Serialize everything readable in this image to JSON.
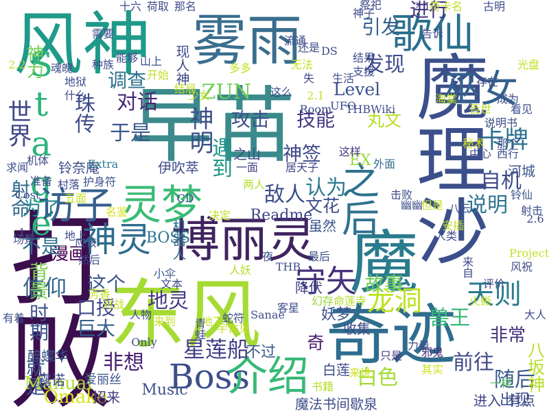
{
  "words": [
    {
      "text": "早苗",
      "color": "#3b8a8c"
    },
    {
      "text": "打败",
      "color": "#3b0f4e"
    },
    {
      "text": "东风",
      "color": "#a6db33"
    },
    {
      "text": "奇迹",
      "color": "#2f6d8e"
    },
    {
      "text": "魔理沙",
      "color": "#3b4f8a"
    },
    {
      "text": "魔",
      "color": "#2a7b8e"
    },
    {
      "text": "风神",
      "color": "#1f9a8a"
    },
    {
      "text": "雾雨",
      "color": "#3a6e8e"
    },
    {
      "text": "博丽灵",
      "color": "#40245f"
    },
    {
      "text": "歌仙",
      "color": "#2b6f8e"
    },
    {
      "text": "巫女",
      "color": "#34608d"
    },
    {
      "text": "Boss",
      "color": "#3c4f8a"
    },
    {
      "text": "介绍",
      "color": "#38b977"
    },
    {
      "text": "Stage",
      "color": "#2eb37c"
    },
    {
      "text": "访子",
      "color": "#355f8d"
    },
    {
      "text": "灵梦",
      "color": "#3bbb75"
    },
    {
      "text": "神灵",
      "color": "#2f6b8e"
    },
    {
      "text": "之后",
      "color": "#2e718e"
    },
    {
      "text": "守矢",
      "color": "#45317a"
    },
    {
      "text": "天则",
      "color": "#2a7a8e"
    },
    {
      "text": "龙洞",
      "color": "#bde322"
    },
    {
      "text": "世界",
      "color": "#3f4889"
    },
    {
      "text": "神明",
      "color": "#3b5089"
    },
    {
      "text": "ZUN",
      "color": "#6ccd5a"
    },
    {
      "text": "对话",
      "color": "#462777"
    },
    {
      "text": "攻击",
      "color": "#3b528b"
    },
    {
      "text": "技能",
      "color": "#443983"
    },
    {
      "text": "发现",
      "color": "#3e4c8a"
    },
    {
      "text": "引发",
      "color": "#34618d"
    },
    {
      "text": "进行",
      "color": "#46307c"
    },
    {
      "text": "卡牌",
      "color": "#2d708e"
    },
    {
      "text": "自机",
      "color": "#3e4b8a"
    },
    {
      "text": "说明",
      "color": "#2c728e"
    },
    {
      "text": "调查",
      "color": "#2c728e"
    },
    {
      "text": "珠传",
      "color": "#3e4a89"
    },
    {
      "text": "于是",
      "color": "#39568c"
    },
    {
      "text": "Level",
      "color": "#3b528b"
    },
    {
      "text": "丸文",
      "color": "#bade28"
    },
    {
      "text": "遇到",
      "color": "#1f968b"
    },
    {
      "text": "星莲船",
      "color": "#433e85"
    },
    {
      "text": "非想",
      "color": "#481c6e"
    },
    {
      "text": "信仰",
      "color": "#31668e"
    },
    {
      "text": "故事",
      "color": "#6ece58"
    },
    {
      "text": "兽王",
      "color": "#38b977"
    },
    {
      "text": "地灵",
      "color": "#443983"
    },
    {
      "text": "敌人",
      "color": "#3c4f8a"
    },
    {
      "text": "认为",
      "color": "#2a788e"
    },
    {
      "text": "神签",
      "color": "#3e4989"
    },
    {
      "text": "文花",
      "color": "#3e4c8a"
    },
    {
      "text": "神力",
      "color": "#75d054"
    },
    {
      "text": "背景",
      "color": "#7ad151"
    },
    {
      "text": "时期",
      "color": "#3b528b"
    },
    {
      "text": "就是",
      "color": "#3a538b"
    },
    {
      "text": "漫画",
      "color": "#440154"
    },
    {
      "text": "巨大",
      "color": "#34608d"
    },
    {
      "text": "口授",
      "color": "#3f4788"
    },
    {
      "text": "这个",
      "color": "#3a548c"
    },
    {
      "text": "不是",
      "color": "#2e6e8e"
    },
    {
      "text": "为了",
      "color": "#238a8d"
    },
    {
      "text": "射命",
      "color": "#31688e"
    },
    {
      "text": "随后",
      "color": "#38598c"
    },
    {
      "text": "前往",
      "color": "#3e4a89"
    },
    {
      "text": "白色",
      "color": "#a2da37"
    },
    {
      "text": "非常",
      "color": "#46337e"
    },
    {
      "text": "奇",
      "color": "#481b6d"
    },
    {
      "text": "妖梦",
      "color": "#3b518b"
    },
    {
      "text": "白莲",
      "color": "#3e4c8a"
    },
    {
      "text": "不过",
      "color": "#38598c"
    },
    {
      "text": "降伏",
      "color": "#414487"
    },
    {
      "text": "收集",
      "color": "#3e4a89"
    },
    {
      "text": "Manual",
      "color": "#b0dd2f"
    },
    {
      "text": "Music",
      "color": "#3b518b"
    },
    {
      "text": "Omake",
      "color": "#d8e219"
    },
    {
      "text": "Readme",
      "color": "#404387"
    },
    {
      "text": "BOSS",
      "color": "#2c728e"
    },
    {
      "text": "EX",
      "color": "#9bd93c"
    },
    {
      "text": "八坂神",
      "color": "#bade28"
    },
    {
      "text": "出现",
      "color": "#3e4c8a"
    },
    {
      "text": "醉蝶华",
      "color": "#3a548c"
    },
    {
      "text": "露诺",
      "color": "#3e4989"
    },
    {
      "text": "招来",
      "color": "#443a83"
    },
    {
      "text": "爱丽丝",
      "color": "#3b528b"
    },
    {
      "text": "魔法书间歇泉",
      "color": "#3e4c8a"
    },
    {
      "text": "有点",
      "color": "#3e4c8a"
    },
    {
      "text": "进入",
      "color": "#414487"
    },
    {
      "text": "一样",
      "color": "#5ec962"
    },
    {
      "text": "书籍",
      "color": "#b5de2b"
    },
    {
      "text": "来说",
      "color": "#cde11d"
    },
    {
      "text": "其实",
      "color": "#cde11d"
    },
    {
      "text": "只是",
      "color": "#443983"
    },
    {
      "text": "邪鬼",
      "color": "#472d7b"
    },
    {
      "text": "力量",
      "color": "#3e4c8a"
    },
    {
      "text": "幻存",
      "color": "#98d83e"
    },
    {
      "text": "机器人",
      "color": "#2e6f8e"
    },
    {
      "text": "现人神",
      "color": "#3e4a89"
    },
    {
      "text": "伊吹萃",
      "color": "#3e4c8a"
    },
    {
      "text": "铃奈庵",
      "color": "#3e4c8a"
    },
    {
      "text": "护身符",
      "color": "#3b518b"
    },
    {
      "text": "Extra",
      "color": "#2a788e"
    },
    {
      "text": "之山",
      "color": "#3e4989"
    },
    {
      "text": "一面",
      "color": "#404387"
    },
    {
      "text": "居天子",
      "color": "#404387"
    },
    {
      "text": "这样",
      "color": "#453781"
    },
    {
      "text": "外面",
      "color": "#2f6c8e"
    },
    {
      "text": "虽然",
      "color": "#3b528b"
    },
    {
      "text": "但是",
      "color": "#c2df23"
    },
    {
      "text": "秘术",
      "color": "#d5e21a"
    },
    {
      "text": "河城",
      "color": "#3a548c"
    },
    {
      "text": "铃仙",
      "color": "#3a548c"
    },
    {
      "text": "射击",
      "color": "#3b528b"
    },
    {
      "text": "八云",
      "color": "#3b528b"
    },
    {
      "text": "幽幽",
      "color": "#3e4c8a"
    },
    {
      "text": "击败",
      "color": "#3e4c8a"
    },
    {
      "text": "两人",
      "color": "#b5de2b"
    },
    {
      "text": "村落",
      "color": "#3e4a89"
    },
    {
      "text": "名鉴",
      "color": "#d8e219"
    },
    {
      "text": "五面",
      "color": "#c5e021"
    },
    {
      "text": "Cost",
      "color": "#3b528b"
    },
    {
      "text": "准备",
      "color": "#3e4a89"
    },
    {
      "text": "机体",
      "color": "#3e4c8a"
    },
    {
      "text": "求闻",
      "color": "#3e4c8a"
    },
    {
      "text": "场景",
      "color": "#3e4c8a"
    },
    {
      "text": "地上",
      "color": "#3e4c8a"
    },
    {
      "text": "应该",
      "color": "#3e4c8a"
    },
    {
      "text": "然后",
      "color": "#3e4c8a"
    },
    {
      "text": "芳香",
      "color": "#c2df23"
    },
    {
      "text": "小伞",
      "color": "#3b528b"
    },
    {
      "text": "文本",
      "color": "#3e4c8a"
    },
    {
      "text": "人妖",
      "color": "#b5de2b"
    },
    {
      "text": "THB",
      "color": "#3e4c8a"
    },
    {
      "text": "最后",
      "color": "#3e4c8a"
    },
    {
      "text": "命莲寺",
      "color": "#b5de2b"
    },
    {
      "text": "来自",
      "color": "#3e4c8a"
    },
    {
      "text": "评价",
      "color": "#3e4c8a"
    },
    {
      "text": "风祝",
      "color": "#3e4c8a"
    },
    {
      "text": "Project",
      "color": "#c2df23"
    },
    {
      "text": "大人",
      "color": "#3e4c8a"
    },
    {
      "text": "人物",
      "color": "#3e4c8a"
    },
    {
      "text": "蛇符",
      "color": "#3e4c8a"
    },
    {
      "text": "宇佐见",
      "color": "#c2df23"
    },
    {
      "text": "地下",
      "color": "#c2df23"
    },
    {
      "text": "青蛙",
      "color": "#3e4c8a"
    },
    {
      "text": "Only",
      "color": "#3e4c8a"
    },
    {
      "text": "来到",
      "color": "#c2df23"
    },
    {
      "text": "有着",
      "color": "#3e4c8a"
    },
    {
      "text": "对战",
      "color": "#c2df23"
    },
    {
      "text": "客星",
      "color": "#3e4c8a"
    },
    {
      "text": "Sanae",
      "color": "#3e4c8a"
    },
    {
      "text": "Room",
      "color": "#3e4c8a"
    },
    {
      "text": "THBWiki",
      "color": "#3e4c8a"
    },
    {
      "text": "UFO",
      "color": "#3e4c8a"
    },
    {
      "text": "海棠",
      "color": "#c2df23"
    },
    {
      "text": "成为",
      "color": "#3e4c8a"
    },
    {
      "text": "看见",
      "color": "#3e4c8a"
    },
    {
      "text": "百世",
      "color": "#c2df23"
    },
    {
      "text": "那个",
      "color": "#3e4c8a"
    },
    {
      "text": "说明书",
      "color": "#3e4c8a"
    },
    {
      "text": "中心",
      "color": "#3e4c8a"
    },
    {
      "text": "西行",
      "color": "#3e4c8a"
    },
    {
      "text": "光盘",
      "color": "#c2df23"
    },
    {
      "text": "存在",
      "color": "#3e4c8a"
    },
    {
      "text": "地狱",
      "color": "#3e4c8a"
    },
    {
      "text": "什么",
      "color": "#3e4c8a"
    },
    {
      "text": "开始",
      "color": "#c2df23"
    },
    {
      "text": "结局",
      "color": "#c2df23"
    },
    {
      "text": "多多",
      "color": "#c2df23"
    },
    {
      "text": "无法",
      "color": "#c2df23"
    },
    {
      "text": "失",
      "color": "#3e4c8a"
    },
    {
      "text": "生活",
      "color": "#3e4c8a"
    },
    {
      "text": "结果",
      "color": "#3e4c8a"
    },
    {
      "text": "支援",
      "color": "#3e4c8a"
    },
    {
      "text": "还是",
      "color": "#3e4c8a"
    },
    {
      "text": "DS",
      "color": "#3e4c8a"
    },
    {
      "text": "流通",
      "color": "#3e4c8a"
    },
    {
      "text": "告诉",
      "color": "#3e4c8a"
    },
    {
      "text": "神子",
      "color": "#3e4c8a"
    },
    {
      "text": "祭祀",
      "color": "#3e4c8a"
    },
    {
      "text": "2.19",
      "color": "#3e4c8a"
    },
    {
      "text": "符卡名",
      "color": "#c2df23"
    },
    {
      "text": "古明",
      "color": "#3e4c8a"
    },
    {
      "text": "那名",
      "color": "#3e4c8a"
    },
    {
      "text": "荷取",
      "color": "#3e4c8a"
    },
    {
      "text": "十六",
      "color": "#3e4c8a"
    },
    {
      "text": "需要",
      "color": "#3e4c8a"
    },
    {
      "text": "能够",
      "color": "#3e4c8a"
    },
    {
      "text": "山上",
      "color": "#3e4c8a"
    },
    {
      "text": "2.2",
      "color": "#c2df23"
    },
    {
      "text": "魂魄",
      "color": "#3e4c8a"
    },
    {
      "text": "种族",
      "color": "#3e4c8a"
    },
    {
      "text": "这么",
      "color": "#3e4c8a"
    },
    {
      "text": "少女",
      "color": "#c2df23"
    },
    {
      "text": "2.1",
      "color": "#c2df23"
    },
    {
      "text": "CD",
      "color": "#3e4c8a"
    },
    {
      "text": "1.1",
      "color": "#3e4c8a"
    },
    {
      "text": "决定",
      "color": "#c2df23"
    },
    {
      "text": "2.6",
      "color": "#3e4c8a"
    },
    {
      "text": "夜",
      "color": "#3e4c8a"
    },
    {
      "text": "火蜥",
      "color": "#c2df23"
    },
    {
      "text": "安插",
      "color": "#c2df23"
    },
    {
      "text": "人类",
      "color": "#3e4c8a"
    }
  ]
}
